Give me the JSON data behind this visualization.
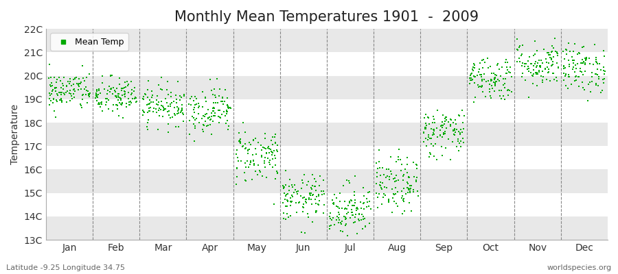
{
  "title": "Monthly Mean Temperatures 1901  -  2009",
  "ylabel": "Temperature",
  "xlabel_bottom_left": "Latitude -9.25 Longitude 34.75",
  "xlabel_bottom_right": "worldspecies.org",
  "legend_label": "Mean Temp",
  "ylim": [
    13,
    22
  ],
  "ytick_labels": [
    "13C",
    "14C",
    "15C",
    "16C",
    "17C",
    "18C",
    "19C",
    "20C",
    "21C",
    "22C"
  ],
  "ytick_values": [
    13,
    14,
    15,
    16,
    17,
    18,
    19,
    20,
    21,
    22
  ],
  "month_names": [
    "Jan",
    "Feb",
    "Mar",
    "Apr",
    "May",
    "Jun",
    "Jul",
    "Aug",
    "Sep",
    "Oct",
    "Nov",
    "Dec"
  ],
  "month_means": [
    19.35,
    19.1,
    18.75,
    18.55,
    16.6,
    14.75,
    14.3,
    15.3,
    17.6,
    19.9,
    20.5,
    20.3
  ],
  "month_stds": [
    0.42,
    0.42,
    0.42,
    0.5,
    0.6,
    0.5,
    0.58,
    0.6,
    0.52,
    0.48,
    0.5,
    0.52
  ],
  "n_years": 109,
  "dot_color": "#00aa00",
  "dot_size": 2.5,
  "background_color": "#ffffff",
  "plot_bg_color": "#ffffff",
  "stripe_color": "#e8e8e8",
  "title_fontsize": 15,
  "axis_label_fontsize": 10,
  "tick_fontsize": 10,
  "legend_fontsize": 9,
  "dashed_line_color": "#888888"
}
